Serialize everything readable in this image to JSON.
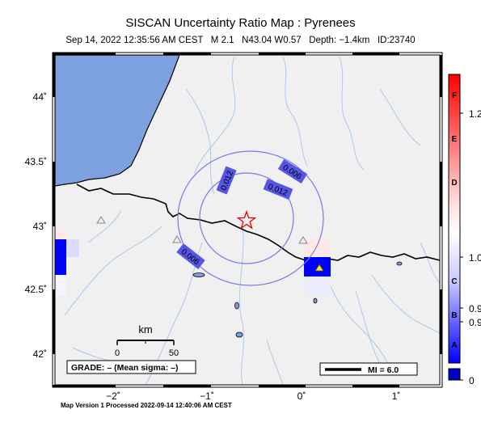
{
  "title": "SISCAN Uncertainty Ratio Map : Pyrenees",
  "subtitle": "Sep 14, 2022 12:35:56 AM CEST   M 2.1   N43.04 W0.57   Depth: −1.4km   ID:23740",
  "footer": "Map Version 1 Processed 2022-09-14 12:40:06 AM CEST",
  "map": {
    "lat_ticks": [
      "44˚",
      "43.5˚",
      "43˚",
      "42.5˚",
      "42˚"
    ],
    "lon_ticks": [
      "−2˚",
      "−1˚",
      "0˚",
      "1˚"
    ],
    "contour_labels": [
      "0.012",
      "0.006",
      "0.012",
      "0.006"
    ],
    "epicenter_icon": "star-icon",
    "station_icons": [
      "triangle-icon",
      "triangle-icon",
      "triangle-icon",
      "triangle-icon"
    ],
    "sea_color": "#7da1de",
    "land_color": "#f0f0f0",
    "river_color": "#a9c8f0"
  },
  "scalebar": {
    "unit": "km",
    "start": "0",
    "end": "50"
  },
  "grade_box": "GRADE: – (Mean sigma: –)",
  "mi_box": "MI = 6.0",
  "colorbar": {
    "letters": [
      "F",
      "E",
      "D",
      "C",
      "B",
      "A"
    ],
    "values": [
      "1.2",
      "1.0",
      "0.9",
      "0.9",
      "0"
    ],
    "top_color": "#ff0000",
    "bottom_color": "#0000c8"
  }
}
